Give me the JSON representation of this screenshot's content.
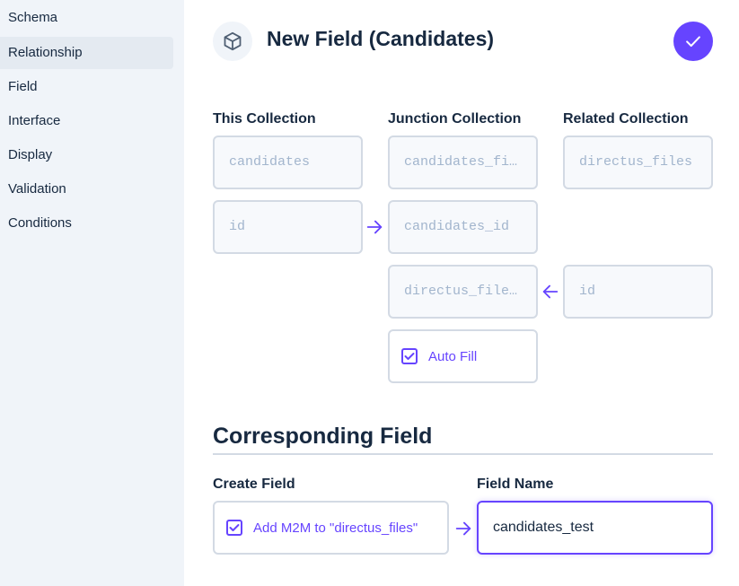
{
  "sidebar": {
    "items": [
      {
        "label": "Schema",
        "active": false
      },
      {
        "label": "Relationship",
        "active": true
      },
      {
        "label": "Field",
        "active": false
      },
      {
        "label": "Interface",
        "active": false
      },
      {
        "label": "Display",
        "active": false
      },
      {
        "label": "Validation",
        "active": false
      },
      {
        "label": "Conditions",
        "active": false
      }
    ]
  },
  "header": {
    "icon": "box-icon",
    "title": "New Field (Candidates)",
    "save_icon": "check-icon"
  },
  "relationship": {
    "this_collection": {
      "label": "This Collection",
      "collection": "candidates",
      "field": "id"
    },
    "junction_collection": {
      "label": "Junction Collection",
      "collection": "candidates_files",
      "field_one": "candidates_id",
      "field_two": "directus_files_id",
      "auto_fill_label": "Auto Fill",
      "auto_fill_checked": true
    },
    "related_collection": {
      "label": "Related Collection",
      "collection": "directus_files",
      "field": "id"
    }
  },
  "corresponding": {
    "title": "Corresponding Field",
    "create_field_label": "Create Field",
    "create_field_checkbox_label": "Add M2M to \"directus_files\"",
    "create_field_checked": true,
    "field_name_label": "Field Name",
    "field_name_value": "candidates_test"
  },
  "colors": {
    "accent": "#6644ff",
    "sidebar_bg": "#f0f4f9",
    "text": "#172940",
    "placeholder": "#a2b5cd",
    "border": "#d3dae4"
  }
}
